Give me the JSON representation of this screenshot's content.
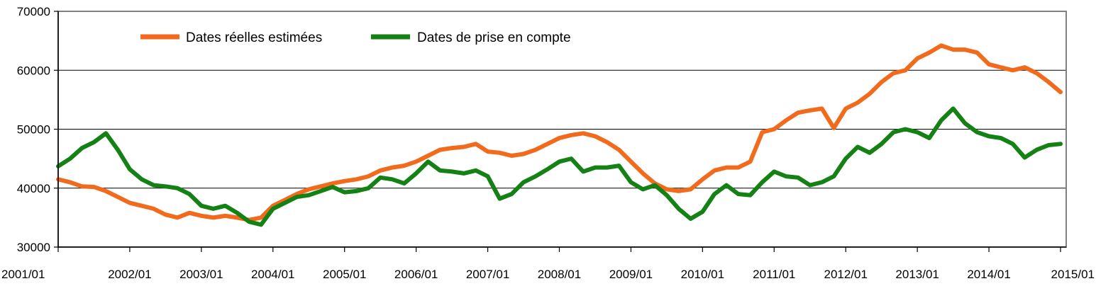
{
  "chart_data": {
    "type": "line",
    "title": "",
    "xlabel": "",
    "ylabel": "",
    "ylim": [
      30000,
      70000
    ],
    "yticks": [
      30000,
      40000,
      50000,
      60000,
      70000
    ],
    "ytick_labels": [
      "30000",
      "40000",
      "50000",
      "60000",
      "70000"
    ],
    "xlim": [
      "2001/01",
      "2015/01"
    ],
    "xtick_labels": [
      "2001/01",
      "2002/01",
      "2003/01",
      "2004/01",
      "2005/01",
      "2006/01",
      "2007/01",
      "2008/01",
      "2009/01",
      "2010/01",
      "2011/01",
      "2012/01",
      "2013/01",
      "2014/01",
      "2015/01"
    ],
    "grid": "horizontal",
    "legend_position": "top-left",
    "series": [
      {
        "name": "Dates réelles estimées",
        "color": "#f26b1d",
        "points": [
          [
            "2001/01",
            41500
          ],
          [
            "2001/03",
            41000
          ],
          [
            "2001/05",
            40300
          ],
          [
            "2001/07",
            40200
          ],
          [
            "2001/09",
            39500
          ],
          [
            "2001/11",
            38500
          ],
          [
            "2002/01",
            37500
          ],
          [
            "2002/03",
            37000
          ],
          [
            "2002/05",
            36500
          ],
          [
            "2002/07",
            35500
          ],
          [
            "2002/09",
            35000
          ],
          [
            "2002/11",
            35800
          ],
          [
            "2003/01",
            35300
          ],
          [
            "2003/03",
            35000
          ],
          [
            "2003/05",
            35300
          ],
          [
            "2003/07",
            35000
          ],
          [
            "2003/09",
            34600
          ],
          [
            "2003/11",
            35000
          ],
          [
            "2004/01",
            37000
          ],
          [
            "2004/03",
            38000
          ],
          [
            "2004/05",
            39000
          ],
          [
            "2004/07",
            39800
          ],
          [
            "2004/09",
            40300
          ],
          [
            "2004/11",
            40800
          ],
          [
            "2005/01",
            41200
          ],
          [
            "2005/03",
            41500
          ],
          [
            "2005/05",
            42000
          ],
          [
            "2005/07",
            43000
          ],
          [
            "2005/09",
            43500
          ],
          [
            "2005/11",
            43800
          ],
          [
            "2006/01",
            44500
          ],
          [
            "2006/03",
            45500
          ],
          [
            "2006/05",
            46500
          ],
          [
            "2006/07",
            46800
          ],
          [
            "2006/09",
            47000
          ],
          [
            "2006/11",
            47500
          ],
          [
            "2007/01",
            46200
          ],
          [
            "2007/03",
            46000
          ],
          [
            "2007/05",
            45500
          ],
          [
            "2007/07",
            45800
          ],
          [
            "2007/09",
            46500
          ],
          [
            "2007/11",
            47500
          ],
          [
            "2008/01",
            48500
          ],
          [
            "2008/03",
            49000
          ],
          [
            "2008/05",
            49300
          ],
          [
            "2008/07",
            48800
          ],
          [
            "2008/09",
            47800
          ],
          [
            "2008/11",
            46500
          ],
          [
            "2009/01",
            44500
          ],
          [
            "2009/03",
            42500
          ],
          [
            "2009/05",
            40800
          ],
          [
            "2009/07",
            39800
          ],
          [
            "2009/09",
            39500
          ],
          [
            "2009/11",
            39800
          ],
          [
            "2010/01",
            41500
          ],
          [
            "2010/03",
            43000
          ],
          [
            "2010/05",
            43500
          ],
          [
            "2010/07",
            43500
          ],
          [
            "2010/09",
            44500
          ],
          [
            "2010/11",
            49500
          ],
          [
            "2011/01",
            50000
          ],
          [
            "2011/03",
            51500
          ],
          [
            "2011/05",
            52800
          ],
          [
            "2011/07",
            53200
          ],
          [
            "2011/09",
            53500
          ],
          [
            "2011/11",
            50200
          ],
          [
            "2012/01",
            53500
          ],
          [
            "2012/03",
            54500
          ],
          [
            "2012/05",
            56000
          ],
          [
            "2012/07",
            58000
          ],
          [
            "2012/09",
            59500
          ],
          [
            "2012/11",
            60000
          ],
          [
            "2013/01",
            62000
          ],
          [
            "2013/03",
            63000
          ],
          [
            "2013/05",
            64200
          ],
          [
            "2013/07",
            63500
          ],
          [
            "2013/09",
            63500
          ],
          [
            "2013/11",
            63000
          ],
          [
            "2014/01",
            61000
          ],
          [
            "2014/03",
            60500
          ],
          [
            "2014/05",
            60000
          ],
          [
            "2014/07",
            60500
          ],
          [
            "2014/09",
            59500
          ],
          [
            "2014/11",
            58000
          ],
          [
            "2015/01",
            56300
          ]
        ]
      },
      {
        "name": "Dates de prise en compte",
        "color": "#138113",
        "points": [
          [
            "2001/01",
            43700
          ],
          [
            "2001/03",
            45000
          ],
          [
            "2001/05",
            46800
          ],
          [
            "2001/07",
            47800
          ],
          [
            "2001/09",
            49300
          ],
          [
            "2001/11",
            46500
          ],
          [
            "2002/01",
            43200
          ],
          [
            "2002/03",
            41500
          ],
          [
            "2002/05",
            40500
          ],
          [
            "2002/07",
            40300
          ],
          [
            "2002/09",
            40000
          ],
          [
            "2002/11",
            39000
          ],
          [
            "2003/01",
            37000
          ],
          [
            "2003/03",
            36500
          ],
          [
            "2003/05",
            37000
          ],
          [
            "2003/07",
            35800
          ],
          [
            "2003/09",
            34300
          ],
          [
            "2003/11",
            33800
          ],
          [
            "2004/01",
            36500
          ],
          [
            "2004/03",
            37500
          ],
          [
            "2004/05",
            38500
          ],
          [
            "2004/07",
            38800
          ],
          [
            "2004/09",
            39500
          ],
          [
            "2004/11",
            40200
          ],
          [
            "2005/01",
            39300
          ],
          [
            "2005/03",
            39500
          ],
          [
            "2005/05",
            40000
          ],
          [
            "2005/07",
            41800
          ],
          [
            "2005/09",
            41500
          ],
          [
            "2005/11",
            40800
          ],
          [
            "2006/01",
            42500
          ],
          [
            "2006/03",
            44500
          ],
          [
            "2006/05",
            43000
          ],
          [
            "2006/07",
            42800
          ],
          [
            "2006/09",
            42500
          ],
          [
            "2006/11",
            43000
          ],
          [
            "2007/01",
            42000
          ],
          [
            "2007/03",
            38200
          ],
          [
            "2007/05",
            39000
          ],
          [
            "2007/07",
            41000
          ],
          [
            "2007/09",
            42000
          ],
          [
            "2007/11",
            43200
          ],
          [
            "2008/01",
            44500
          ],
          [
            "2008/03",
            45000
          ],
          [
            "2008/05",
            42800
          ],
          [
            "2008/07",
            43500
          ],
          [
            "2008/09",
            43500
          ],
          [
            "2008/11",
            43800
          ],
          [
            "2009/01",
            41000
          ],
          [
            "2009/03",
            39800
          ],
          [
            "2009/05",
            40500
          ],
          [
            "2009/07",
            38800
          ],
          [
            "2009/09",
            36500
          ],
          [
            "2009/11",
            34800
          ],
          [
            "2010/01",
            36000
          ],
          [
            "2010/03",
            39000
          ],
          [
            "2010/05",
            40500
          ],
          [
            "2010/07",
            39000
          ],
          [
            "2010/09",
            38800
          ],
          [
            "2010/11",
            41000
          ],
          [
            "2011/01",
            42800
          ],
          [
            "2011/03",
            42000
          ],
          [
            "2011/05",
            41800
          ],
          [
            "2011/07",
            40500
          ],
          [
            "2011/09",
            41000
          ],
          [
            "2011/11",
            42000
          ],
          [
            "2012/01",
            45000
          ],
          [
            "2012/03",
            47000
          ],
          [
            "2012/05",
            46000
          ],
          [
            "2012/07",
            47500
          ],
          [
            "2012/09",
            49500
          ],
          [
            "2012/11",
            50000
          ],
          [
            "2013/01",
            49500
          ],
          [
            "2013/03",
            48500
          ],
          [
            "2013/05",
            51500
          ],
          [
            "2013/07",
            53500
          ],
          [
            "2013/09",
            51000
          ],
          [
            "2013/11",
            49500
          ],
          [
            "2014/01",
            48800
          ],
          [
            "2014/03",
            48500
          ],
          [
            "2014/05",
            47500
          ],
          [
            "2014/07",
            45200
          ],
          [
            "2014/09",
            46500
          ],
          [
            "2014/11",
            47300
          ],
          [
            "2015/01",
            47500
          ]
        ]
      }
    ]
  }
}
